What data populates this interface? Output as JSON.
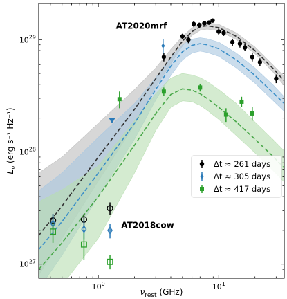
{
  "chart_data": {
    "type": "scatter",
    "xlabel": "ν_rest (GHz)",
    "ylabel": "L_ν (erg s⁻¹ Hz⁻¹)",
    "x_scale": "log",
    "y_scale": "log",
    "xlim": [
      0.32,
      35
    ],
    "ylim": [
      7.5e+26,
      2.1e+29
    ],
    "x_ticks": [
      {
        "value": 1,
        "label": "10^0"
      },
      {
        "value": 10,
        "label": "10^1"
      }
    ],
    "y_ticks": [
      {
        "value": 1e+27,
        "label": "10^27"
      },
      {
        "value": 1e+28,
        "label": "10^28"
      },
      {
        "value": 1e+29,
        "label": "10^29"
      }
    ],
    "annotations": [
      {
        "text": "AT2020mrf",
        "x": 1.4,
        "y": 1.25e+29
      },
      {
        "text": "AT2018cow",
        "x": 1.55,
        "y": 2.1e+27
      }
    ],
    "legend": {
      "position": "right",
      "entries": [
        {
          "label": "Δt ≈ 261 days",
          "color": "#000000",
          "marker": "circle"
        },
        {
          "label": "Δt ≈ 305 days",
          "color": "#2a7ab8",
          "marker": "diamond"
        },
        {
          "label": "Δt ≈ 417 days",
          "color": "#2ca02c",
          "marker": "square"
        }
      ]
    },
    "series": [
      {
        "color": "#000000",
        "marker": "circle",
        "filled": true,
        "points": [
          {
            "x": 3.5,
            "y": 7e+28,
            "yerr": 6e+27
          },
          {
            "x": 5.0,
            "y": 1.07e+29,
            "yerr": 6e+27
          },
          {
            "x": 5.6,
            "y": 1e+29,
            "yerr": 7e+27
          },
          {
            "x": 6.2,
            "y": 1.38e+29,
            "yerr": 8e+27
          },
          {
            "x": 6.9,
            "y": 1.35e+29,
            "yerr": 7e+27
          },
          {
            "x": 7.6,
            "y": 1.4e+29,
            "yerr": 6e+27
          },
          {
            "x": 8.3,
            "y": 1.42e+29,
            "yerr": 6e+27
          },
          {
            "x": 8.9,
            "y": 1.48e+29,
            "yerr": 6e+27
          },
          {
            "x": 10.0,
            "y": 1.18e+29,
            "yerr": 8e+27
          },
          {
            "x": 11.0,
            "y": 1.15e+29,
            "yerr": 7e+27
          },
          {
            "x": 13.0,
            "y": 9.5e+28,
            "yerr": 7e+27
          },
          {
            "x": 15.0,
            "y": 9.2e+28,
            "yerr": 7e+27
          },
          {
            "x": 16.5,
            "y": 8.5e+28,
            "yerr": 6e+27
          },
          {
            "x": 19.0,
            "y": 7e+28,
            "yerr": 6e+27
          },
          {
            "x": 22.0,
            "y": 6.3e+28,
            "yerr": 5e+27
          },
          {
            "x": 30.0,
            "y": 4.5e+28,
            "yerr": 4e+27
          }
        ]
      },
      {
        "color": "#2a7ab8",
        "marker": "diamond",
        "filled": true,
        "points": [
          {
            "x": 3.45,
            "y": 8.8e+28,
            "yerr": 1.3e+28
          }
        ],
        "upper_limits": [
          {
            "x": 1.3,
            "y": 1.9e+28
          }
        ]
      },
      {
        "color": "#2ca02c",
        "marker": "square",
        "filled": true,
        "points": [
          {
            "x": 1.5,
            "y": 2.95e+28,
            "yerr": 5e+27
          },
          {
            "x": 3.5,
            "y": 3.45e+28,
            "yerr": 3e+27
          },
          {
            "x": 7.0,
            "y": 3.75e+28,
            "yerr": 3e+27
          },
          {
            "x": 11.5,
            "y": 2.15e+28,
            "yerr": 3e+27
          },
          {
            "x": 15.5,
            "y": 2.8e+28,
            "yerr": 3e+27
          },
          {
            "x": 19.0,
            "y": 2.2e+28,
            "yerr": 3e+27
          }
        ]
      },
      {
        "color": "#000000",
        "marker": "circle",
        "filled": false,
        "points": [
          {
            "x": 0.42,
            "y": 2.45e+27,
            "yerr": 3.5e+26
          },
          {
            "x": 0.76,
            "y": 2.5e+27,
            "yerr": 3e+26
          },
          {
            "x": 1.25,
            "y": 3.15e+27,
            "yerr": 4e+26
          }
        ]
      },
      {
        "color": "#2a7ab8",
        "marker": "diamond",
        "filled": false,
        "points": [
          {
            "x": 0.42,
            "y": 2.3e+27,
            "yerr": 5e+26
          },
          {
            "x": 0.76,
            "y": 2.05e+27,
            "yerr": 4e+26
          },
          {
            "x": 1.25,
            "y": 2e+27,
            "yerr": 3e+26
          }
        ]
      },
      {
        "color": "#2ca02c",
        "marker": "square",
        "filled": false,
        "points": [
          {
            "x": 0.42,
            "y": 1.95e+27,
            "yerr": 4e+26
          },
          {
            "x": 0.76,
            "y": 1.5e+27,
            "yerr": 4e+26
          },
          {
            "x": 1.25,
            "y": 1.05e+27,
            "yerr": 1.5e+26
          }
        ]
      }
    ],
    "model_curves": [
      {
        "color": "#333333",
        "band_color": "#bdbdbd",
        "x": [
          0.32,
          0.5,
          1.0,
          2.0,
          3.0,
          4.0,
          5.0,
          6.0,
          7.0,
          8.0,
          10.0,
          14.0,
          20.0,
          28.0,
          35.0
        ],
        "y": [
          1.8e+27,
          3.3e+27,
          9e+27,
          2.4e+28,
          4.5e+28,
          7e+28,
          9.7e+28,
          1.18e+29,
          1.3e+29,
          1.33e+29,
          1.28e+29,
          1.07e+29,
          8e+28,
          5.6e+28,
          4.3e+28
        ],
        "band_low": [
          8e+26,
          1.7e+27,
          5.5e+27,
          1.75e+28,
          3.8e+28,
          6.1e+28,
          8.8e+28,
          1.09e+29,
          1.21e+29,
          1.24e+29,
          1.2e+29,
          1e+29,
          7.5e+28,
          5.2e+28,
          3.9e+28
        ],
        "band_high": [
          6.5e+27,
          9e+27,
          1.8e+28,
          3.6e+28,
          5.6e+28,
          8.2e+28,
          1.07e+29,
          1.27e+29,
          1.39e+29,
          1.42e+29,
          1.37e+29,
          1.15e+29,
          8.6e+28,
          6e+28,
          4.7e+28
        ]
      },
      {
        "color": "#3b8fc8",
        "band_color": "#a9c6e0",
        "x": [
          0.32,
          0.5,
          1.0,
          2.0,
          3.0,
          4.0,
          5.0,
          6.0,
          7.0,
          8.0,
          10.0,
          14.0,
          20.0,
          28.0,
          35.0
        ],
        "y": [
          1.35e+27,
          2.4e+27,
          6.5e+27,
          1.8e+28,
          3.6e+28,
          5.8e+28,
          7.8e+28,
          8.9e+28,
          9.2e+28,
          9e+28,
          8.3e+28,
          6.6e+28,
          4.8e+28,
          3.4e+28,
          2.7e+28
        ],
        "band_low": [
          6e+26,
          1.2e+27,
          4e+27,
          1.3e+28,
          2.9e+28,
          4.8e+28,
          6.6e+28,
          7.6e+28,
          7.9e+28,
          7.7e+28,
          7.1e+28,
          5.6e+28,
          4.1e+28,
          2.9e+28,
          2.3e+28
        ],
        "band_high": [
          4.5e+27,
          6.5e+27,
          1.35e+28,
          2.7e+28,
          4.6e+28,
          6.9e+28,
          9e+28,
          1.01e+29,
          1.04e+29,
          1.02e+29,
          9.5e+28,
          7.6e+28,
          5.6e+28,
          4e+28,
          3.1e+28
        ]
      },
      {
        "color": "#4aa84a",
        "band_color": "#b8deb0",
        "x": [
          0.32,
          0.5,
          1.0,
          2.0,
          3.0,
          4.0,
          5.0,
          6.0,
          7.0,
          8.0,
          10.0,
          14.0,
          20.0,
          28.0,
          35.0
        ],
        "y": [
          9e+26,
          1.55e+27,
          4e+27,
          1.15e+28,
          2.2e+28,
          3.25e+28,
          3.65e+28,
          3.55e+28,
          3.3e+28,
          3e+28,
          2.5e+28,
          1.85e+28,
          1.3e+28,
          9.2e+27,
          7.2e+27
        ],
        "band_low": [
          4e+26,
          6.5e+26,
          1.7e+27,
          6.5e+27,
          1.55e+28,
          2.5e+28,
          2.85e+28,
          2.8e+28,
          2.6e+28,
          2.35e+28,
          1.95e+28,
          1.4e+28,
          9.8e+27,
          6.9e+27,
          5.4e+27
        ],
        "band_high": [
          3.6e+27,
          4.6e+27,
          7.5e+27,
          1.9e+28,
          3.3e+28,
          4.55e+28,
          5e+28,
          4.85e+28,
          4.6e+28,
          4.25e+28,
          3.6e+28,
          2.7e+28,
          1.85e+28,
          1.3e+28,
          1.02e+28
        ]
      }
    ]
  }
}
